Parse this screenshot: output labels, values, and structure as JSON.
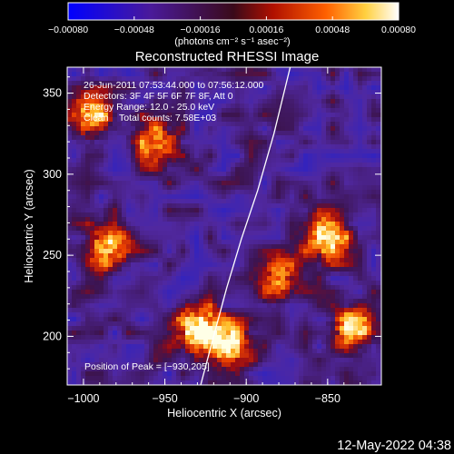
{
  "chart_data": {
    "type": "heatmap",
    "title": "Reconstructed RHESSI Image",
    "xlabel": "Heliocentric X (arcsec)",
    "ylabel": "Heliocentric Y (arcsec)",
    "xlim": [
      -1010,
      -817
    ],
    "ylim": [
      170,
      366
    ],
    "x_ticks": [
      -1000,
      -950,
      -900,
      -850
    ],
    "x_tick_labels": [
      "−1000",
      "−950",
      "−900",
      "−850"
    ],
    "y_ticks": [
      200,
      250,
      300,
      350
    ],
    "y_tick_labels": [
      "200",
      "250",
      "300",
      "350"
    ],
    "colorbar": {
      "range": [
        -0.0008,
        0.0008
      ],
      "tick_values": [
        -0.0008,
        -0.00048,
        -0.00016,
        0.00016,
        0.00048,
        0.0008
      ],
      "tick_labels": [
        "−0.00080",
        "−0.00048",
        "−0.00016",
        "0.00016",
        "0.00048",
        "0.00080"
      ],
      "units_label": "(photons cm⁻² s⁻¹ asec⁻²)"
    },
    "annotations": {
      "time_range": "26‐Jun‐2011 07:53:44.000 to 07:56:12.000",
      "detectors": "Detectors: 3F 4F 5F 6F 7F 8F, Att 0",
      "energy": "Energy Range: 12.0 ‐ 25.0 keV",
      "algorithm": "Clean",
      "total_counts": "Total counts: 7.58E+03",
      "peak": "Position of Peak = [−930,205]"
    },
    "limb_curve": {
      "x": [
        -928,
        -920,
        -912,
        -903,
        -893,
        -883,
        -873
      ],
      "y": [
        170,
        200,
        230,
        260,
        290,
        325,
        366
      ]
    },
    "bright_regions": [
      {
        "x": -930,
        "y": 205,
        "intensity": 1.0
      },
      {
        "x": -912,
        "y": 195,
        "intensity": 0.85
      },
      {
        "x": -985,
        "y": 255,
        "intensity": 0.8
      },
      {
        "x": -995,
        "y": 335,
        "intensity": 0.75
      },
      {
        "x": -955,
        "y": 320,
        "intensity": 0.65
      },
      {
        "x": -850,
        "y": 260,
        "intensity": 0.85
      },
      {
        "x": -835,
        "y": 205,
        "intensity": 0.75
      },
      {
        "x": -880,
        "y": 235,
        "intensity": 0.55
      }
    ]
  },
  "footer": {
    "timestamp": "12‐May‐2022 04:38"
  }
}
